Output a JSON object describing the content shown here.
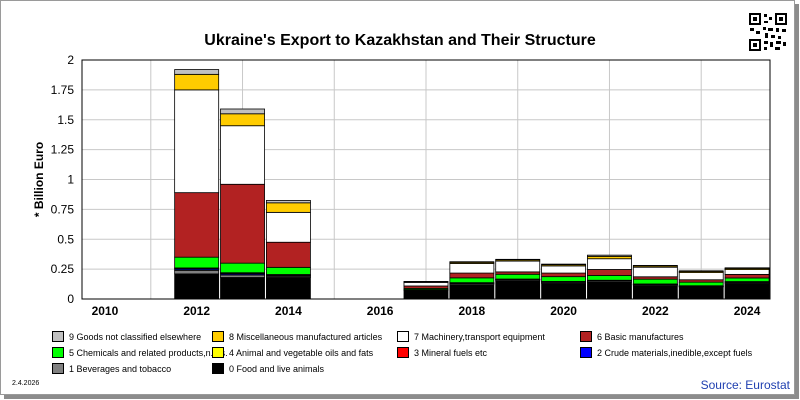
{
  "chart_data": {
    "type": "bar",
    "stacked": true,
    "title": "Ukraine's Export to Kazakhstan and Their Structure",
    "ylabel": "* Billion Euro",
    "xlabel": "",
    "ylim": [
      0,
      2
    ],
    "yticks": [
      "0",
      "0.25",
      "0.5",
      "0.75",
      "1",
      "1.25",
      "1.5",
      "1.75",
      "2"
    ],
    "xticks": [
      "2010",
      "2012",
      "2014",
      "2016",
      "2018",
      "2020",
      "2022",
      "2024"
    ],
    "years": [
      2010,
      2011,
      2012,
      2013,
      2014,
      2015,
      2016,
      2017,
      2018,
      2019,
      2020,
      2021,
      2022,
      2023,
      2024
    ],
    "grid": true,
    "series": [
      {
        "name": "0 Food and live animals",
        "color": "#000000",
        "values": [
          null,
          null,
          0.21,
          0.18,
          0.18,
          null,
          null,
          0.07,
          0.12,
          0.15,
          0.13,
          0.14,
          0.11,
          0.1,
          0.13
        ]
      },
      {
        "name": "1 Beverages and tobacco",
        "color": "#808080",
        "values": [
          null,
          null,
          0.03,
          0.02,
          0.01,
          null,
          null,
          0.005,
          0.01,
          0.01,
          0.01,
          0.01,
          0.01,
          0.005,
          0.01
        ]
      },
      {
        "name": "2 Crude materials,inedible,except fuels",
        "color": "#0000ff",
        "values": [
          null,
          null,
          0.01,
          0.01,
          0.005,
          null,
          null,
          0.002,
          0.003,
          0.003,
          0.003,
          0.003,
          0.002,
          0.002,
          0.002
        ]
      },
      {
        "name": "3 Mineral fuels etc",
        "color": "#ff0000",
        "values": [
          null,
          null,
          0.005,
          0.005,
          0.005,
          null,
          null,
          0.001,
          0.002,
          0.002,
          0.002,
          0.002,
          0.002,
          0.002,
          0.002
        ]
      },
      {
        "name": "4 Animal and vegetable oils and fats",
        "color": "#ffff00",
        "values": [
          null,
          null,
          0.005,
          0.005,
          0.005,
          null,
          null,
          0.001,
          0.002,
          0.002,
          0.002,
          0.002,
          0.002,
          0.002,
          0.002
        ]
      },
      {
        "name": "5 Chemicals and related products,n.e.s.",
        "color": "#00ff00",
        "values": [
          null,
          null,
          0.09,
          0.08,
          0.06,
          null,
          null,
          0.01,
          0.04,
          0.04,
          0.04,
          0.04,
          0.04,
          0.03,
          0.03
        ]
      },
      {
        "name": "6 Basic manufactures",
        "color": "#b22222",
        "values": [
          null,
          null,
          0.54,
          0.66,
          0.21,
          null,
          null,
          0.02,
          0.04,
          0.02,
          0.03,
          0.05,
          0.02,
          0.02,
          0.03
        ]
      },
      {
        "name": "7 Machinery,transport equipment",
        "color": "#ffffff",
        "values": [
          null,
          null,
          0.86,
          0.49,
          0.25,
          null,
          null,
          0.03,
          0.08,
          0.09,
          0.06,
          0.09,
          0.08,
          0.06,
          0.04
        ]
      },
      {
        "name": "8 Miscellaneous manufactured articles",
        "color": "#ffcc00",
        "values": [
          null,
          null,
          0.13,
          0.1,
          0.08,
          null,
          null,
          0.005,
          0.01,
          0.01,
          0.01,
          0.02,
          0.01,
          0.01,
          0.01
        ]
      },
      {
        "name": "9 Goods not classified elsewhere",
        "color": "#c0c0c0",
        "values": [
          null,
          null,
          0.04,
          0.04,
          0.02,
          null,
          null,
          0.003,
          0.005,
          0.005,
          0.005,
          0.01,
          0.005,
          0.005,
          0.005
        ]
      }
    ],
    "legend_order": [
      9,
      8,
      7,
      6,
      5,
      4,
      3,
      2,
      1,
      0
    ]
  },
  "footer": {
    "date": "2.4.2026",
    "source": "Source: Eurostat"
  },
  "colors": {
    "plot_background": "#ffffff",
    "grid": "#c8c8c8",
    "frame_shadow": "#8c8c8c",
    "source_text": "#1f3fb0"
  }
}
